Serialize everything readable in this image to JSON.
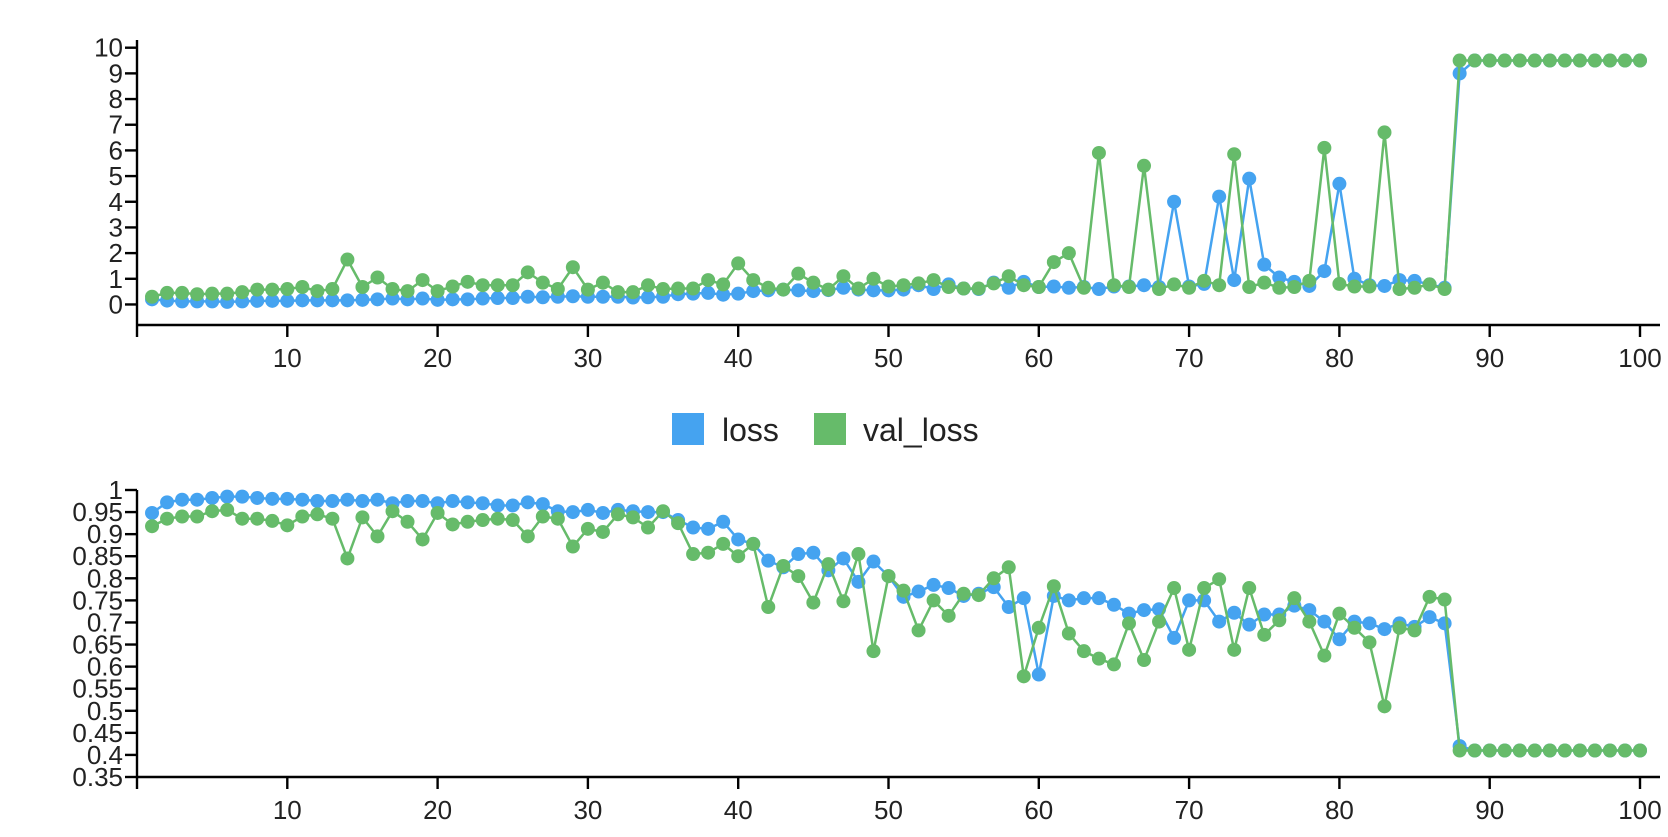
{
  "colors": {
    "loss": "#45a3f0",
    "val_loss": "#66bb6a"
  },
  "legend": [
    {
      "name": "loss",
      "color": "#45a3f0"
    },
    {
      "name": "val_loss",
      "color": "#66bb6a"
    }
  ],
  "chart_data": [
    {
      "type": "line",
      "x": [
        1,
        2,
        3,
        4,
        5,
        6,
        7,
        8,
        9,
        10,
        11,
        12,
        13,
        14,
        15,
        16,
        17,
        18,
        19,
        20,
        21,
        22,
        23,
        24,
        25,
        26,
        27,
        28,
        29,
        30,
        31,
        32,
        33,
        34,
        35,
        36,
        37,
        38,
        39,
        40,
        41,
        42,
        43,
        44,
        45,
        46,
        47,
        48,
        49,
        50,
        51,
        52,
        53,
        54,
        55,
        56,
        57,
        58,
        59,
        60,
        61,
        62,
        63,
        64,
        65,
        66,
        67,
        68,
        69,
        70,
        71,
        72,
        73,
        74,
        75,
        76,
        77,
        78,
        79,
        80,
        81,
        82,
        83,
        84,
        85,
        86,
        87,
        88,
        89,
        90,
        91,
        92,
        93,
        94,
        95,
        96,
        97,
        98,
        99,
        100
      ],
      "xlim": [
        0,
        100
      ],
      "ylim": [
        -0.8,
        10.3
      ],
      "xticks": [
        10,
        20,
        30,
        40,
        50,
        60,
        70,
        80,
        90,
        100
      ],
      "xtick_labels": [
        "10",
        "20",
        "30",
        "40",
        "50",
        "60",
        "70",
        "80",
        "90",
        "100"
      ],
      "yticks": [
        0,
        1,
        2,
        3,
        4,
        5,
        6,
        7,
        8,
        9,
        10
      ],
      "ytick_labels": [
        "0",
        "1",
        "2",
        "3",
        "4",
        "5",
        "6",
        "7",
        "8",
        "9",
        "10"
      ],
      "series": [
        {
          "name": "loss",
          "values": [
            0.2,
            0.15,
            0.12,
            0.12,
            0.12,
            0.1,
            0.12,
            0.14,
            0.14,
            0.14,
            0.16,
            0.16,
            0.16,
            0.16,
            0.18,
            0.2,
            0.23,
            0.2,
            0.23,
            0.18,
            0.2,
            0.2,
            0.23,
            0.25,
            0.25,
            0.3,
            0.28,
            0.3,
            0.32,
            0.3,
            0.3,
            0.3,
            0.27,
            0.28,
            0.3,
            0.4,
            0.42,
            0.45,
            0.38,
            0.42,
            0.52,
            0.55,
            0.58,
            0.55,
            0.52,
            0.56,
            0.65,
            0.58,
            0.55,
            0.55,
            0.58,
            0.75,
            0.6,
            0.78,
            0.62,
            0.6,
            0.85,
            0.65,
            0.88,
            0.68,
            0.7,
            0.65,
            0.68,
            0.6,
            0.7,
            0.7,
            0.75,
            0.68,
            4.0,
            0.7,
            0.8,
            4.2,
            0.95,
            4.9,
            1.55,
            1.05,
            0.88,
            0.72,
            1.3,
            4.7,
            1.0,
            0.75,
            0.72,
            0.95,
            0.92,
            0.78,
            0.65,
            9.0,
            9.5,
            9.5,
            9.5,
            9.5,
            9.5,
            9.5,
            9.5,
            9.5,
            9.5,
            9.5,
            9.5,
            9.5
          ]
        },
        {
          "name": "val_loss",
          "values": [
            0.3,
            0.45,
            0.45,
            0.4,
            0.42,
            0.42,
            0.48,
            0.58,
            0.58,
            0.6,
            0.68,
            0.52,
            0.6,
            1.75,
            0.68,
            1.05,
            0.6,
            0.52,
            0.95,
            0.52,
            0.7,
            0.88,
            0.75,
            0.75,
            0.75,
            1.25,
            0.85,
            0.6,
            1.45,
            0.58,
            0.85,
            0.48,
            0.48,
            0.75,
            0.6,
            0.62,
            0.62,
            0.95,
            0.78,
            1.6,
            0.95,
            0.65,
            0.58,
            1.2,
            0.85,
            0.58,
            1.1,
            0.62,
            1.0,
            0.7,
            0.75,
            0.82,
            0.95,
            0.68,
            0.62,
            0.62,
            0.82,
            1.1,
            0.75,
            0.68,
            1.65,
            2.0,
            0.65,
            5.9,
            0.75,
            0.68,
            5.4,
            0.6,
            0.78,
            0.65,
            0.92,
            0.75,
            5.85,
            0.68,
            0.85,
            0.65,
            0.68,
            0.92,
            6.1,
            0.8,
            0.7,
            0.7,
            6.7,
            0.6,
            0.65,
            0.78,
            0.6,
            9.5,
            9.5,
            9.5,
            9.5,
            9.5,
            9.5,
            9.5,
            9.5,
            9.5,
            9.5,
            9.5,
            9.5,
            9.5
          ]
        }
      ]
    },
    {
      "type": "line",
      "x": [
        1,
        2,
        3,
        4,
        5,
        6,
        7,
        8,
        9,
        10,
        11,
        12,
        13,
        14,
        15,
        16,
        17,
        18,
        19,
        20,
        21,
        22,
        23,
        24,
        25,
        26,
        27,
        28,
        29,
        30,
        31,
        32,
        33,
        34,
        35,
        36,
        37,
        38,
        39,
        40,
        41,
        42,
        43,
        44,
        45,
        46,
        47,
        48,
        49,
        50,
        51,
        52,
        53,
        54,
        55,
        56,
        57,
        58,
        59,
        60,
        61,
        62,
        63,
        64,
        65,
        66,
        67,
        68,
        69,
        70,
        71,
        72,
        73,
        74,
        75,
        76,
        77,
        78,
        79,
        80,
        81,
        82,
        83,
        84,
        85,
        86,
        87,
        88,
        89,
        90,
        91,
        92,
        93,
        94,
        95,
        96,
        97,
        98,
        99,
        100
      ],
      "xlim": [
        0,
        100
      ],
      "ylim": [
        0.35,
        1
      ],
      "xticks": [
        10,
        20,
        30,
        40,
        50,
        60,
        70,
        80,
        90,
        100
      ],
      "xtick_labels": [
        "10",
        "20",
        "30",
        "40",
        "50",
        "60",
        "70",
        "80",
        "90",
        "100"
      ],
      "yticks": [
        0.35,
        0.4,
        0.45,
        0.5,
        0.55,
        0.6,
        0.65,
        0.7,
        0.75,
        0.8,
        0.85,
        0.9,
        0.95,
        1
      ],
      "ytick_labels": [
        "0.35",
        "0.4",
        "0.45",
        "0.5",
        "0.55",
        "0.6",
        "0.65",
        "0.7",
        "0.75",
        "0.8",
        "0.85",
        "0.9",
        "0.95",
        "1"
      ],
      "series": [
        {
          "name": "loss",
          "values": [
            0.948,
            0.972,
            0.978,
            0.978,
            0.982,
            0.985,
            0.985,
            0.982,
            0.98,
            0.98,
            0.978,
            0.975,
            0.975,
            0.978,
            0.975,
            0.978,
            0.97,
            0.975,
            0.975,
            0.97,
            0.975,
            0.972,
            0.97,
            0.965,
            0.965,
            0.972,
            0.968,
            0.952,
            0.95,
            0.955,
            0.948,
            0.955,
            0.952,
            0.95,
            0.95,
            0.932,
            0.915,
            0.912,
            0.928,
            0.888,
            0.878,
            0.84,
            0.825,
            0.855,
            0.858,
            0.818,
            0.845,
            0.792,
            0.838,
            0.805,
            0.758,
            0.77,
            0.785,
            0.778,
            0.76,
            0.765,
            0.78,
            0.735,
            0.755,
            0.582,
            0.76,
            0.75,
            0.755,
            0.755,
            0.74,
            0.72,
            0.728,
            0.73,
            0.665,
            0.75,
            0.75,
            0.702,
            0.722,
            0.695,
            0.718,
            0.718,
            0.738,
            0.728,
            0.702,
            0.662,
            0.702,
            0.698,
            0.685,
            0.698,
            0.69,
            0.712,
            0.698,
            0.42,
            0.41,
            0.41,
            0.41,
            0.41,
            0.41,
            0.41,
            0.41,
            0.41,
            0.41,
            0.41,
            0.41,
            0.41
          ]
        },
        {
          "name": "val_loss",
          "values": [
            0.918,
            0.935,
            0.94,
            0.94,
            0.952,
            0.955,
            0.935,
            0.935,
            0.93,
            0.92,
            0.94,
            0.945,
            0.935,
            0.845,
            0.938,
            0.895,
            0.952,
            0.928,
            0.888,
            0.948,
            0.922,
            0.928,
            0.932,
            0.935,
            0.932,
            0.895,
            0.94,
            0.935,
            0.872,
            0.912,
            0.905,
            0.945,
            0.938,
            0.915,
            0.952,
            0.925,
            0.855,
            0.858,
            0.878,
            0.85,
            0.878,
            0.735,
            0.828,
            0.805,
            0.745,
            0.832,
            0.748,
            0.855,
            0.635,
            0.805,
            0.772,
            0.682,
            0.75,
            0.715,
            0.765,
            0.762,
            0.8,
            0.825,
            0.578,
            0.688,
            0.782,
            0.675,
            0.635,
            0.618,
            0.605,
            0.698,
            0.615,
            0.702,
            0.778,
            0.638,
            0.778,
            0.798,
            0.638,
            0.778,
            0.672,
            0.705,
            0.755,
            0.702,
            0.625,
            0.72,
            0.688,
            0.655,
            0.51,
            0.688,
            0.682,
            0.758,
            0.752,
            0.41,
            0.41,
            0.41,
            0.41,
            0.41,
            0.41,
            0.41,
            0.41,
            0.41,
            0.41,
            0.41,
            0.41,
            0.41
          ]
        }
      ]
    }
  ]
}
